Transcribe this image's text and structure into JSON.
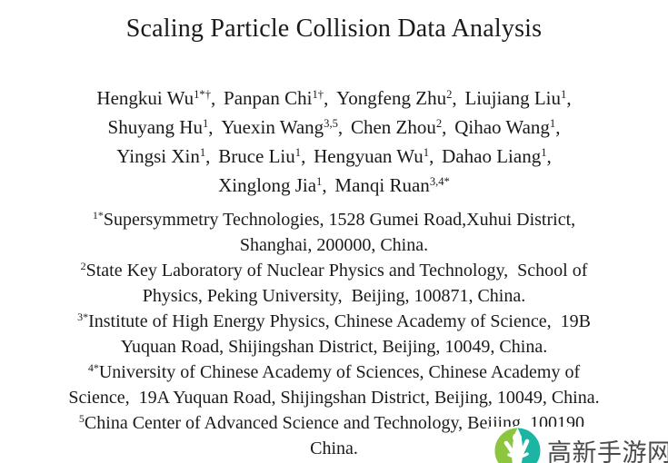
{
  "paper": {
    "title": "Scaling Particle Collision Data Analysis"
  },
  "authors": {
    "separator": ",",
    "lines": [
      {
        "names": [
          {
            "name": "Hengkui Wu",
            "sup": "1*†"
          },
          {
            "name": "Panpan Chi",
            "sup": "1†"
          },
          {
            "name": "Yongfeng Zhu",
            "sup": "2"
          },
          {
            "name": "Liujiang Liu",
            "sup": "1"
          }
        ],
        "trail": ","
      },
      {
        "names": [
          {
            "name": "Shuyang Hu",
            "sup": "1"
          },
          {
            "name": "Yuexin Wang",
            "sup": "3,5"
          },
          {
            "name": "Chen Zhou",
            "sup": "2"
          },
          {
            "name": "Qihao Wang",
            "sup": "1"
          }
        ],
        "trail": ","
      },
      {
        "names": [
          {
            "name": "Yingsi Xin",
            "sup": "1"
          },
          {
            "name": "Bruce Liu",
            "sup": "1"
          },
          {
            "name": "Hengyuan Wu",
            "sup": "1"
          },
          {
            "name": "Dahao Liang",
            "sup": "1"
          }
        ],
        "trail": ","
      },
      {
        "names": [
          {
            "name": "Xinglong Jia",
            "sup": "1"
          },
          {
            "name": "Manqi Ruan",
            "sup": "3,4*"
          }
        ],
        "trail": ""
      }
    ]
  },
  "affiliations": [
    {
      "sup": "1*",
      "lines": [
        "Supersymmetry Technologies, 1528 Gumei Road,Xuhui District,",
        "Shanghai, 200000, China."
      ]
    },
    {
      "sup": "2",
      "lines": [
        "State Key Laboratory of Nuclear Physics and Technology,  School of",
        "Physics, Peking University,  Beijing, 100871, China."
      ]
    },
    {
      "sup": "3*",
      "lines": [
        "Institute of High Energy Physics, Chinese Academy of Science,  19B",
        "Yuquan Road, Shijingshan District, Beijing, 10049, China."
      ]
    },
    {
      "sup": "4*",
      "lines": [
        "University of Chinese Academy of Sciences, Chinese Academy of",
        "Science,  19A Yuquan Road, Shijingshan District, Beijing, 10049, China."
      ]
    },
    {
      "sup": "5",
      "lines": [
        "China Center of Advanced Science and Technology, Beijing, 100190,",
        "China."
      ]
    }
  ],
  "watermark": {
    "text": "高新手游网",
    "text_color": "#4a4a4a",
    "logo": {
      "left_color": "#8dc63f",
      "right_color": "#1cb5a3",
      "figure_color": "#ffffff"
    }
  }
}
